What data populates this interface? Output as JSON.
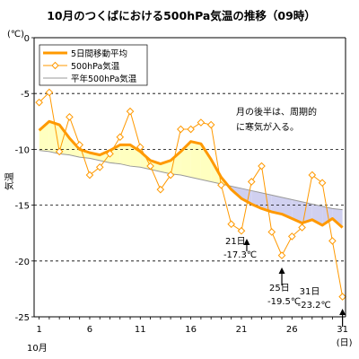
{
  "chart_data": {
    "type": "line",
    "title": "10月のつくばにおける500hPa気温の推移（09時）",
    "ylabel": "気温",
    "yunit": "(℃)",
    "xunit": "10月",
    "xlim": [
      0.5,
      31.3
    ],
    "ylim": [
      -25,
      0
    ],
    "x": [
      1,
      2,
      3,
      4,
      5,
      6,
      7,
      8,
      9,
      10,
      11,
      12,
      13,
      14,
      15,
      16,
      17,
      18,
      19,
      20,
      21,
      22,
      23,
      24,
      25,
      26,
      27,
      28,
      29,
      30,
      31
    ],
    "xticks": [
      1,
      6,
      11,
      16,
      21,
      26,
      31
    ],
    "xtick_labels": [
      "1",
      "6",
      "11",
      "16",
      "21",
      "26",
      "31"
    ],
    "yticks": [
      0,
      -5,
      -10,
      -15,
      -20,
      -25
    ],
    "ytick_labels": [
      "0",
      "-5",
      "-10",
      "-15",
      "-20",
      "-25"
    ],
    "gridlines_y": [
      -5,
      -10,
      -15,
      -20
    ],
    "series": [
      {
        "name": "5日間移動平均",
        "color": "#ff9900",
        "values": [
          -8.3,
          -7.5,
          -7.8,
          -9.0,
          -10.0,
          -10.3,
          -10.5,
          -10.1,
          -9.6,
          -9.6,
          -10.2,
          -11.0,
          -11.3,
          -11.0,
          -10.2,
          -9.3,
          -9.5,
          -10.9,
          -12.5,
          -13.6,
          -14.4,
          -14.9,
          -15.3,
          -15.6,
          -15.8,
          -16.2,
          -16.6,
          -16.3,
          -16.8,
          -16.2,
          -17.0
        ]
      },
      {
        "name": "500hPa気温",
        "color": "#ff9900",
        "marker": "open-diamond",
        "values": [
          -5.8,
          -4.9,
          -10.2,
          -7.1,
          -9.6,
          -12.3,
          -11.6,
          -10.4,
          -8.9,
          -6.6,
          -9.8,
          -11.5,
          -13.6,
          -12.3,
          -8.2,
          -8.2,
          -7.6,
          -7.8,
          -13.2,
          -16.7,
          -17.3,
          -12.9,
          -11.5,
          -17.4,
          -19.5,
          -17.8,
          -17.0,
          -12.3,
          -13.0,
          -18.2,
          -23.2
        ]
      },
      {
        "name": "平年500hPa気温",
        "color": "#999999",
        "values": [
          -10.1,
          -10.2,
          -10.4,
          -10.5,
          -10.7,
          -10.8,
          -11.0,
          -11.2,
          -11.3,
          -11.5,
          -11.6,
          -11.8,
          -12.0,
          -12.2,
          -12.3,
          -12.5,
          -12.7,
          -12.9,
          -13.1,
          -13.3,
          -13.5,
          -13.7,
          -13.9,
          -14.1,
          -14.3,
          -14.5,
          -14.7,
          -14.9,
          -15.1,
          -15.3,
          -15.4
        ]
      }
    ],
    "fills": {
      "warm_color": "#ffffc0",
      "cold_color": "#d0d0f0"
    },
    "annotations": {
      "note_line1": "月の後半は、周期的",
      "note_line2": "に寒気が入る。",
      "points": [
        {
          "day_label": "21日",
          "temp_label": "-17.3℃",
          "x": 21,
          "y": -17.3
        },
        {
          "day_label": "25日",
          "temp_label": "-19.5℃",
          "x": 25,
          "y": -19.5
        },
        {
          "day_label": "31日",
          "temp_label": "-23.2℃",
          "x": 31,
          "y": -23.2
        }
      ],
      "weekday_label": "(日)"
    },
    "legend_position": "top-left"
  }
}
